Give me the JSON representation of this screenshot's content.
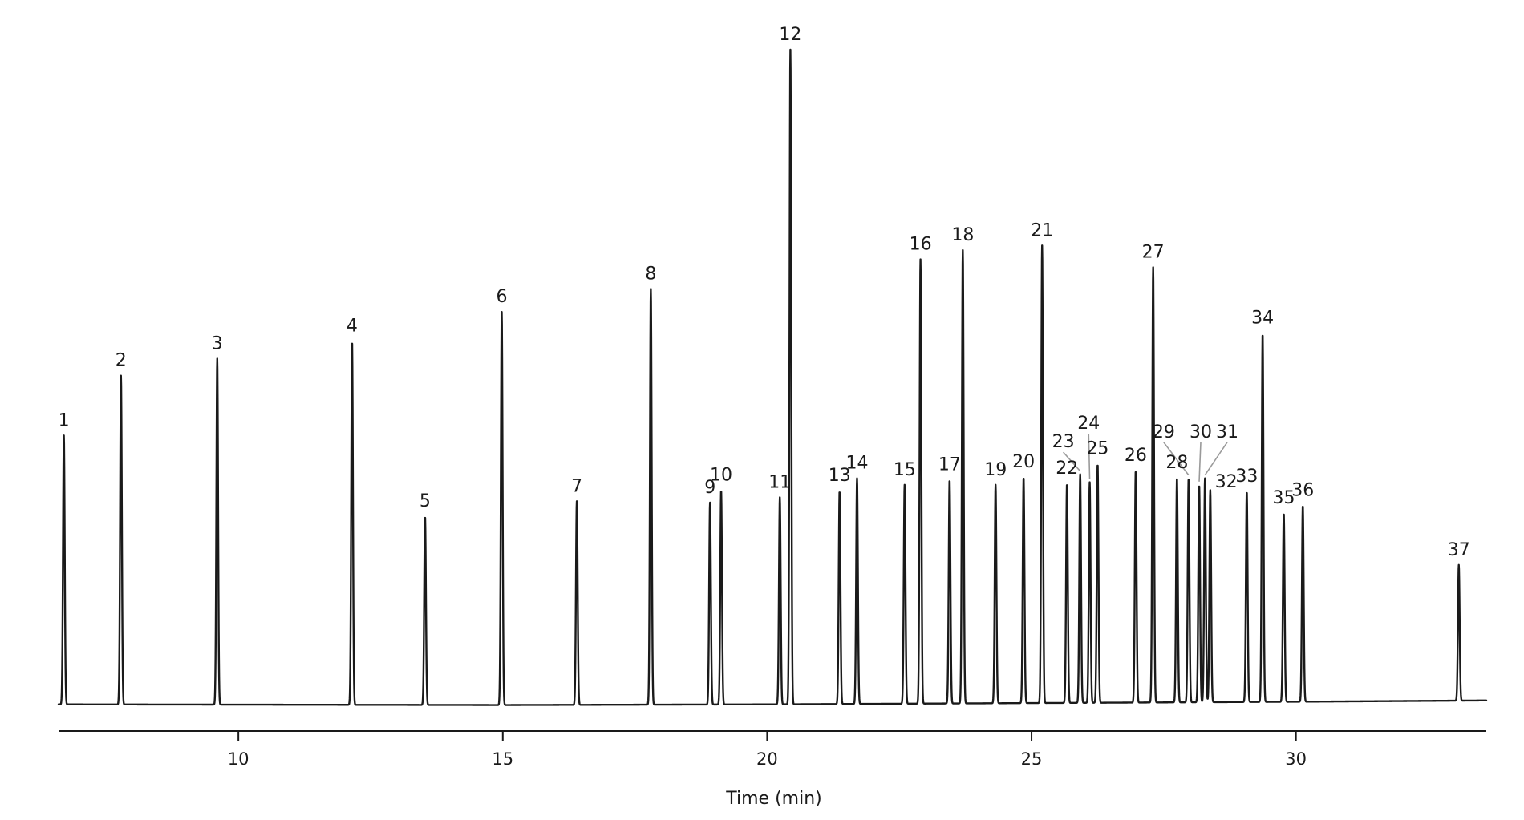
{
  "chart_data": {
    "type": "line",
    "title": "",
    "xlabel": "Time (min)",
    "ylabel": "",
    "xlim": [
      6.6,
      33.6
    ],
    "ylim": [
      0,
      100
    ],
    "grid": false,
    "legend": "none",
    "x_ticks": [
      10,
      15,
      20,
      25,
      30
    ],
    "tick_labels": [
      "10",
      "15",
      "20",
      "25",
      "30"
    ],
    "line_color": "#1a1a1a",
    "leader_color": "#9a9a9a",
    "baseline": [
      [
        6.6,
        0.4
      ],
      [
        15,
        0.3
      ],
      [
        20,
        0.4
      ],
      [
        25,
        0.6
      ],
      [
        30,
        0.8
      ],
      [
        33.6,
        1.0
      ]
    ],
    "peaks": [
      {
        "label": "1",
        "time": 6.7,
        "height": 41.3
      },
      {
        "label": "2",
        "time": 7.78,
        "height": 50.4
      },
      {
        "label": "3",
        "time": 9.6,
        "height": 53.0
      },
      {
        "label": "4",
        "time": 12.15,
        "height": 55.7
      },
      {
        "label": "5",
        "time": 13.53,
        "height": 29.0
      },
      {
        "label": "6",
        "time": 14.98,
        "height": 60.1
      },
      {
        "label": "7",
        "time": 16.4,
        "height": 31.3
      },
      {
        "label": "8",
        "time": 17.8,
        "height": 63.6
      },
      {
        "label": "9",
        "time": 18.92,
        "height": 31.1
      },
      {
        "label": "10",
        "time": 19.13,
        "height": 33.0
      },
      {
        "label": "11",
        "time": 20.24,
        "height": 31.9
      },
      {
        "label": "12",
        "time": 20.44,
        "height": 100.0
      },
      {
        "label": "13",
        "time": 21.37,
        "height": 32.9
      },
      {
        "label": "14",
        "time": 21.7,
        "height": 34.8
      },
      {
        "label": "15",
        "time": 22.6,
        "height": 33.8
      },
      {
        "label": "16",
        "time": 22.9,
        "height": 68.1
      },
      {
        "label": "17",
        "time": 23.45,
        "height": 34.6
      },
      {
        "label": "18",
        "time": 23.7,
        "height": 69.5
      },
      {
        "label": "19",
        "time": 24.32,
        "height": 33.8
      },
      {
        "label": "20",
        "time": 24.85,
        "height": 35.0
      },
      {
        "label": "21",
        "time": 25.2,
        "height": 70.2
      },
      {
        "label": "22",
        "time": 25.67,
        "height": 34.0
      },
      {
        "label": "23",
        "time": 25.92,
        "height": 35.4,
        "label_x": 25.6,
        "label_h": 39.5
      },
      {
        "label": "24",
        "time": 26.1,
        "height": 34.2,
        "label_x": 26.08,
        "label_h": 42.3
      },
      {
        "label": "25",
        "time": 26.25,
        "height": 37.0
      },
      {
        "label": "26",
        "time": 26.97,
        "height": 36.0
      },
      {
        "label": "27",
        "time": 27.3,
        "height": 66.9
      },
      {
        "label": "28",
        "time": 27.75,
        "height": 34.9
      },
      {
        "label": "29",
        "time": 27.97,
        "height": 34.8,
        "label_x": 27.5,
        "label_h": 41.0
      },
      {
        "label": "30",
        "time": 28.17,
        "height": 33.8,
        "label_x": 28.2,
        "label_h": 41.0
      },
      {
        "label": "31",
        "time": 28.28,
        "height": 34.8,
        "label_x": 28.7,
        "label_h": 41.0
      },
      {
        "label": "32",
        "time": 28.38,
        "height": 33.0,
        "label_x": 28.62,
        "label_h": 33.4
      },
      {
        "label": "33",
        "time": 29.07,
        "height": 32.8
      },
      {
        "label": "34",
        "time": 29.37,
        "height": 56.9
      },
      {
        "label": "35",
        "time": 29.77,
        "height": 29.5
      },
      {
        "label": "36",
        "time": 30.13,
        "height": 30.7
      },
      {
        "label": "37",
        "time": 33.08,
        "height": 21.6
      }
    ]
  }
}
